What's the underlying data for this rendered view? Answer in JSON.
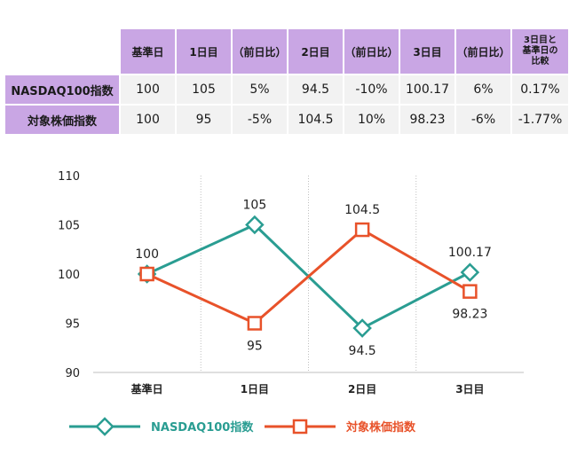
{
  "table": {
    "headers": [
      "",
      "基準日",
      "1日目",
      "（前日比）",
      "2日目",
      "（前日比）",
      "3日目",
      "（前日比）",
      "3日目と基準日の比較"
    ],
    "rows": [
      {
        "label": "NASDAQ100指数",
        "cells": [
          "100",
          "105",
          "5%",
          "94.5",
          "-10%",
          "100.17",
          "6%",
          "0.17%"
        ]
      },
      {
        "label": "対象株価指数",
        "cells": [
          "100",
          "95",
          "-5%",
          "104.5",
          "10%",
          "98.23",
          "-6%",
          "-1.77%"
        ]
      }
    ]
  },
  "chart_data": {
    "type": "line",
    "categories": [
      "基準日",
      "1日目",
      "2日目",
      "3日目"
    ],
    "ylim": [
      90,
      110
    ],
    "yticks": [
      "90",
      "95",
      "100",
      "105",
      "110"
    ],
    "grid": "vertical dotted separators between categories",
    "legend_position": "bottom",
    "series": [
      {
        "name": "NASDAQ100指数",
        "values": [
          100,
          105,
          94.5,
          100.17
        ],
        "labels": [
          "100",
          "105",
          "94.5",
          "100.17"
        ],
        "color": "#2a9d92",
        "marker": "diamond"
      },
      {
        "name": "対象株価指数",
        "values": [
          100,
          95,
          104.5,
          98.23
        ],
        "labels": [
          "",
          "95",
          "104.5",
          "98.23"
        ],
        "color": "#e8522a",
        "marker": "square"
      }
    ]
  }
}
